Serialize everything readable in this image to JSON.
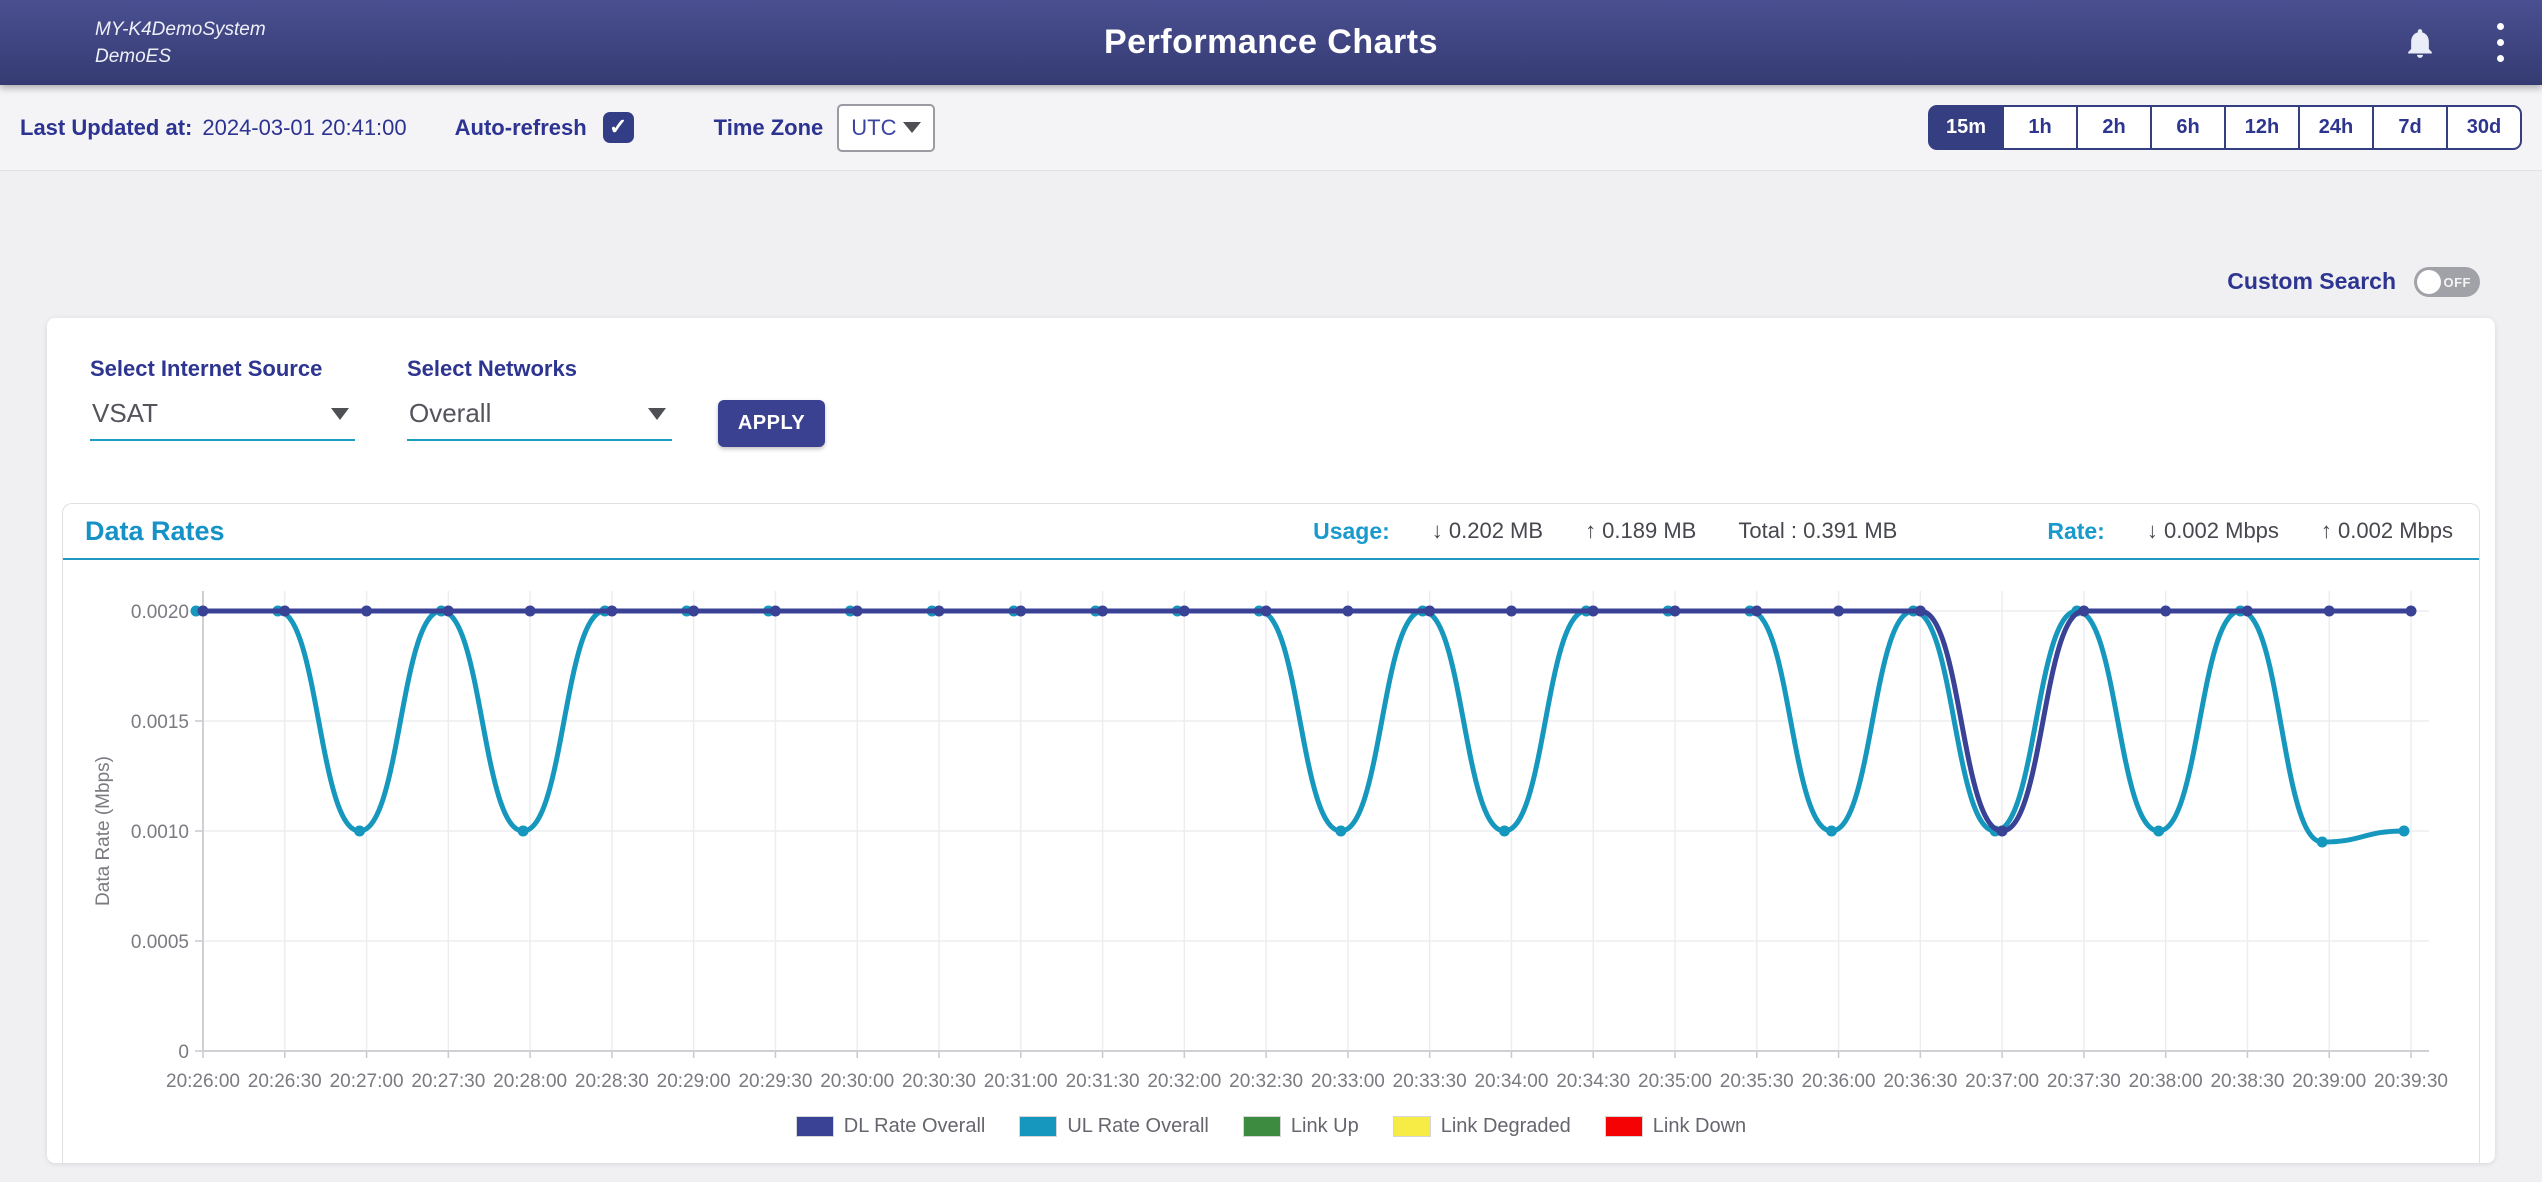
{
  "header": {
    "brand_line1": "MY-K4DemoSystem",
    "brand_line2": "DemoES",
    "title": "Performance Charts"
  },
  "toolbar": {
    "last_updated_label": "Last Updated at:",
    "last_updated_value": "2024-03-01 20:41:00",
    "auto_refresh_label": "Auto-refresh",
    "auto_refresh_checked": true,
    "time_zone_label": "Time Zone",
    "time_zone_value": "UTC",
    "ranges": [
      "15m",
      "1h",
      "2h",
      "6h",
      "12h",
      "24h",
      "7d",
      "30d"
    ],
    "selected_range": "15m"
  },
  "custom_search": {
    "label": "Custom Search",
    "state": "OFF"
  },
  "filters": {
    "internet_source_label": "Select Internet Source",
    "internet_source_value": "VSAT",
    "networks_label": "Select Networks",
    "networks_value": "Overall",
    "apply_label": "APPLY"
  },
  "data_rates": {
    "title": "Data Rates",
    "usage_label": "Usage:",
    "usage_down": "↓ 0.202 MB",
    "usage_up": "↑ 0.189 MB",
    "usage_total": "Total : 0.391 MB",
    "rate_label": "Rate:",
    "rate_down": "↓ 0.002 Mbps",
    "rate_up": "↑ 0.002 Mbps"
  },
  "chart_data": {
    "type": "line",
    "title": "Data Rates",
    "xlabel": "",
    "ylabel": "Data Rate (Mbps)",
    "ylim": [
      0,
      0.002
    ],
    "yticks": [
      0,
      0.0005,
      0.001,
      0.0015,
      0.002
    ],
    "ytick_labels": [
      "0",
      "0.0005",
      "0.0010",
      "0.0015",
      "0.0020"
    ],
    "grid": true,
    "legend_position": "bottom",
    "x": [
      "20:26:00",
      "20:26:30",
      "20:27:00",
      "20:27:30",
      "20:28:00",
      "20:28:30",
      "20:29:00",
      "20:29:30",
      "20:30:00",
      "20:30:30",
      "20:31:00",
      "20:31:30",
      "20:32:00",
      "20:32:30",
      "20:33:00",
      "20:33:30",
      "20:34:00",
      "20:34:30",
      "20:35:00",
      "20:35:30",
      "20:36:00",
      "20:36:30",
      "20:37:00",
      "20:37:30",
      "20:38:00",
      "20:38:30",
      "20:39:00",
      "20:39:30"
    ],
    "series": [
      {
        "name": "DL Rate Overall",
        "color": "#3a4296",
        "values": [
          0.002,
          0.002,
          0.002,
          0.002,
          0.002,
          0.002,
          0.002,
          0.002,
          0.002,
          0.002,
          0.002,
          0.002,
          0.002,
          0.002,
          0.002,
          0.002,
          0.002,
          0.002,
          0.002,
          0.002,
          0.002,
          0.002,
          0.001,
          0.002,
          0.002,
          0.002,
          0.002,
          0.002
        ]
      },
      {
        "name": "UL Rate Overall",
        "color": "#1697bd",
        "values": [
          0.002,
          0.002,
          0.001,
          0.002,
          0.001,
          0.002,
          0.002,
          0.002,
          0.002,
          0.002,
          0.002,
          0.002,
          0.002,
          0.002,
          0.001,
          0.002,
          0.001,
          0.002,
          0.002,
          0.002,
          0.001,
          0.002,
          0.001,
          0.002,
          0.001,
          0.002,
          0.00095,
          0.001
        ]
      },
      {
        "name": "Link Up",
        "color": "#3d8b40",
        "values": []
      },
      {
        "name": "Link Degraded",
        "color": "#f7ec45",
        "values": []
      },
      {
        "name": "Link Down",
        "color": "#f50304",
        "values": []
      }
    ]
  },
  "colors": {
    "accent_navy": "#363e82",
    "accent_teal": "#1792c7",
    "toggle_gray": "#a1a1a8"
  }
}
